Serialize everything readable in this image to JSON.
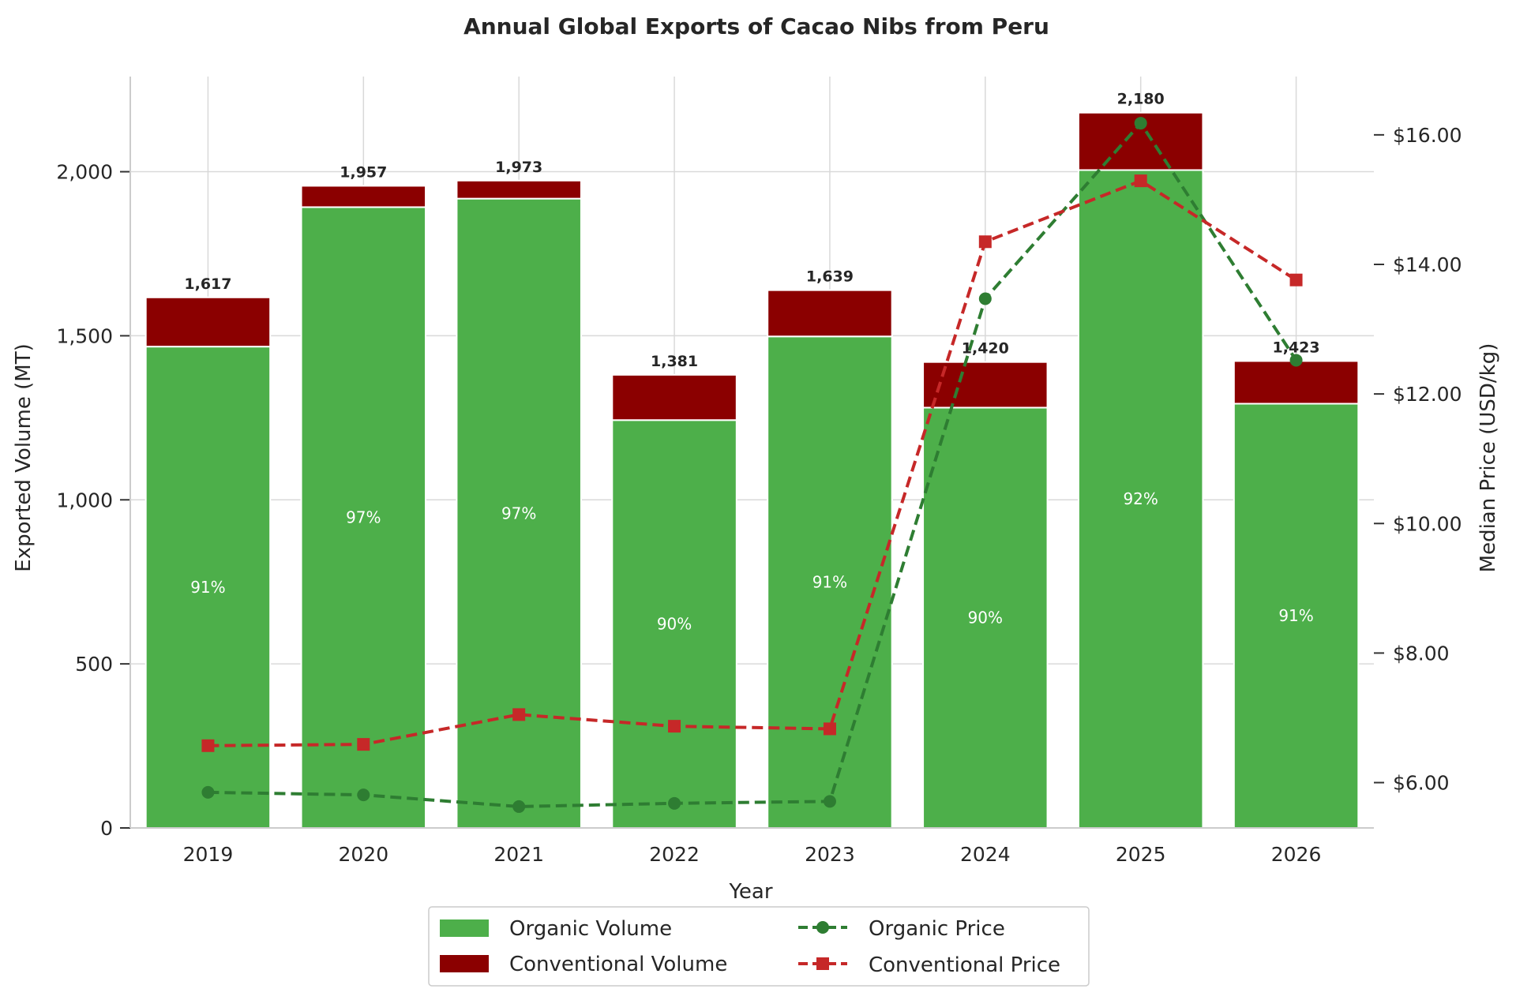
{
  "chart_data": {
    "type": "bar",
    "title": "Annual Global Exports of Cacao Nibs from Peru",
    "xlabel": "Year",
    "ylabel": "Exported Volume (MT)",
    "y2label": "Median Price (USD/kg)",
    "categories": [
      "2019",
      "2020",
      "2021",
      "2022",
      "2023",
      "2024",
      "2025",
      "2026"
    ],
    "ylim": [
      0,
      2290
    ],
    "y2lim": [
      5.3,
      16.9
    ],
    "yticks": [
      0,
      500,
      1000,
      1500,
      2000
    ],
    "ytick_labels": [
      "0",
      "500",
      "1,000",
      "1,500",
      "2,000"
    ],
    "y2ticks": [
      6,
      8,
      10,
      12,
      14,
      16
    ],
    "y2tick_labels": [
      "$6.00",
      "$8.00",
      "$10.00",
      "$12.00",
      "$14.00",
      "$16.00"
    ],
    "grid": true,
    "legend_position": "bottom-center",
    "bar_series": [
      {
        "name": "Organic Volume",
        "color": "#4daf4a",
        "values": [
          1467,
          1892,
          1918,
          1243,
          1498,
          1281,
          2005,
          1293
        ]
      },
      {
        "name": "Conventional Volume",
        "color": "#8b0000",
        "values": [
          150,
          65,
          55,
          138,
          141,
          139,
          175,
          130
        ]
      }
    ],
    "totals": [
      1617,
      1957,
      1973,
      1381,
      1639,
      1420,
      2180,
      1423
    ],
    "total_labels": [
      "1,617",
      "1,957",
      "1,973",
      "1,381",
      "1,639",
      "1,420",
      "2,180",
      "1,423"
    ],
    "organic_share_labels": [
      "91%",
      "97%",
      "97%",
      "90%",
      "91%",
      "90%",
      "92%",
      "91%"
    ],
    "line_series": [
      {
        "name": "Organic Price",
        "color": "#2e7d32",
        "marker": "circle",
        "values": [
          5.85,
          5.81,
          5.63,
          5.68,
          5.71,
          13.47,
          16.18,
          12.52
        ]
      },
      {
        "name": "Conventional Price",
        "color": "#c62828",
        "marker": "square",
        "values": [
          6.57,
          6.59,
          7.05,
          6.87,
          6.83,
          14.35,
          15.29,
          13.76
        ]
      }
    ]
  }
}
